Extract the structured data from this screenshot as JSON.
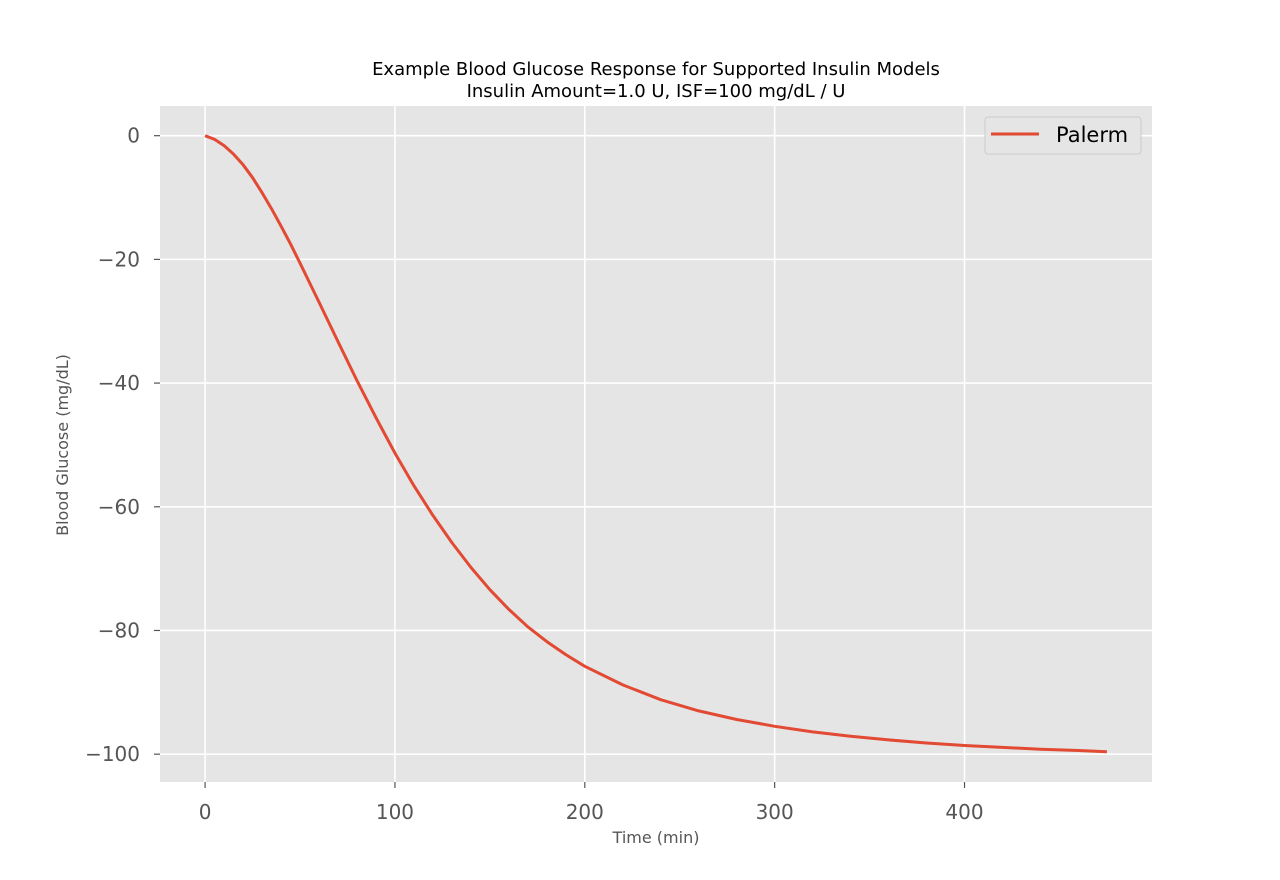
{
  "chart_data": {
    "type": "line",
    "title": "Example Blood Glucose Response for Supported Insulin Models",
    "subtitle": "Insulin Amount=1.0 U, ISF=100 mg/dL / U",
    "xlabel": "Time (min)",
    "ylabel": "Blood Glucose (mg/dL)",
    "xlim": [
      -23.75,
      498.75
    ],
    "ylim": [
      -104.5,
      4.8
    ],
    "xticks": [
      0,
      100,
      200,
      300,
      400
    ],
    "xtick_labels": [
      "0",
      "100",
      "200",
      "300",
      "400"
    ],
    "yticks": [
      0,
      -20,
      -40,
      -60,
      -80,
      -100
    ],
    "ytick_labels": [
      "0",
      "−20",
      "−40",
      "−60",
      "−80",
      "−100"
    ],
    "grid": true,
    "legend_position": "top-right",
    "series": [
      {
        "name": "Palerm",
        "color": "#E24A33",
        "x": [
          0,
          5,
          10,
          15,
          20,
          25,
          30,
          35,
          40,
          45,
          50,
          60,
          70,
          80,
          90,
          100,
          110,
          120,
          130,
          140,
          150,
          160,
          170,
          180,
          190,
          200,
          220,
          240,
          260,
          280,
          300,
          320,
          340,
          360,
          380,
          400,
          420,
          440,
          460,
          475
        ],
        "y": [
          0,
          -0.6,
          -1.6,
          -3.0,
          -4.7,
          -6.8,
          -9.2,
          -11.8,
          -14.6,
          -17.5,
          -20.6,
          -26.9,
          -33.3,
          -39.6,
          -45.6,
          -51.3,
          -56.6,
          -61.4,
          -65.8,
          -69.8,
          -73.4,
          -76.6,
          -79.4,
          -81.8,
          -83.9,
          -85.8,
          -88.8,
          -91.2,
          -93.0,
          -94.4,
          -95.5,
          -96.4,
          -97.1,
          -97.7,
          -98.2,
          -98.6,
          -98.9,
          -99.2,
          -99.4,
          -99.6
        ]
      }
    ]
  }
}
